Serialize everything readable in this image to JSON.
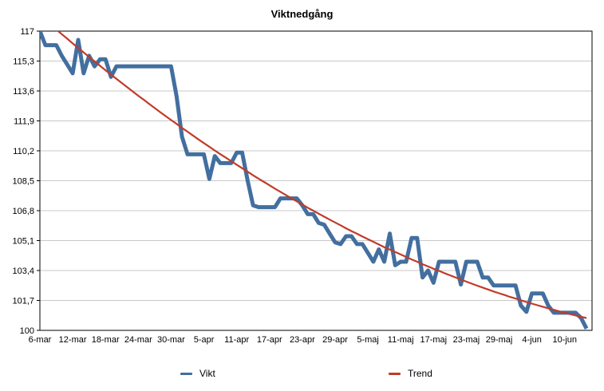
{
  "title": "Viktnedgång",
  "legend": {
    "items": [
      {
        "label": "Vikt",
        "color": "#426f9f"
      },
      {
        "label": "Trend",
        "color": "#c13b2a"
      }
    ]
  },
  "colors": {
    "vikt_line": "#426f9f",
    "trend_line": "#c13b2a",
    "gridline": "#c8c8c8",
    "axis": "#000000",
    "background": "#ffffff",
    "text": "#000000"
  },
  "chart_data": {
    "type": "line",
    "title": "Viktnedgång",
    "xlabel": "",
    "ylabel": "",
    "ylim": [
      100,
      117
    ],
    "grid": "horizontal",
    "legend_position": "bottom",
    "y_ticks": [
      100,
      101.7,
      103.4,
      105.1,
      106.8,
      108.5,
      110.2,
      111.9,
      113.6,
      115.3,
      117
    ],
    "y_tick_labels": [
      "100",
      "101,7",
      "103,4",
      "105,1",
      "106,8",
      "108,5",
      "110,2",
      "111,9",
      "113,6",
      "115,3",
      "117"
    ],
    "x_tick_labels": [
      "6-mar",
      "12-mar",
      "18-mar",
      "24-mar",
      "30-mar",
      "5-apr",
      "11-apr",
      "17-apr",
      "23-apr",
      "29-apr",
      "5-maj",
      "11-maj",
      "17-maj",
      "23-maj",
      "29-maj",
      "4-jun",
      "10-jun"
    ],
    "x_tick_days": [
      0,
      6,
      12,
      18,
      24,
      30,
      36,
      42,
      48,
      54,
      60,
      66,
      72,
      78,
      84,
      90,
      96
    ],
    "x_total_days": 101,
    "series": [
      {
        "name": "Vikt",
        "color": "#426f9f",
        "stroke_width": 5,
        "values": [
          117.0,
          116.2,
          116.2,
          116.2,
          115.6,
          115.1,
          114.6,
          116.5,
          114.6,
          115.6,
          115.0,
          115.4,
          115.4,
          114.4,
          115.0,
          115.0,
          115.0,
          115.0,
          115.0,
          115.0,
          115.0,
          115.0,
          115.0,
          115.0,
          115.0,
          113.3,
          111.0,
          110.0,
          110.0,
          110.0,
          110.0,
          108.6,
          109.9,
          109.5,
          109.5,
          109.5,
          110.1,
          110.1,
          108.5,
          107.1,
          107.0,
          107.0,
          107.0,
          107.0,
          107.5,
          107.5,
          107.5,
          107.5,
          107.1,
          106.6,
          106.6,
          106.1,
          106.0,
          105.5,
          105.0,
          104.9,
          105.35,
          105.35,
          104.9,
          104.9,
          104.4,
          103.9,
          104.6,
          103.9,
          105.5,
          103.7,
          103.9,
          103.9,
          105.25,
          105.25,
          103.0,
          103.4,
          102.7,
          103.9,
          103.9,
          103.9,
          103.9,
          102.6,
          103.9,
          103.9,
          103.9,
          103.0,
          103.0,
          102.55,
          102.55,
          102.55,
          102.55,
          102.55,
          101.4,
          101.05,
          102.1,
          102.1,
          102.1,
          101.4,
          101.0,
          101.0,
          101.0,
          101.0,
          101.0,
          100.7,
          100.1
        ]
      },
      {
        "name": "Trend",
        "color": "#c13b2a",
        "stroke_width": 2.2,
        "values": [
          117.9,
          117.63,
          117.36,
          117.09,
          116.83,
          116.57,
          116.3,
          116.05,
          115.79,
          115.53,
          115.28,
          115.03,
          114.78,
          114.53,
          114.29,
          114.05,
          113.81,
          113.57,
          113.33,
          113.1,
          112.86,
          112.63,
          112.4,
          112.17,
          111.95,
          111.73,
          111.5,
          111.29,
          111.07,
          110.85,
          110.64,
          110.43,
          110.22,
          110.01,
          109.81,
          109.61,
          109.41,
          109.21,
          109.01,
          108.81,
          108.62,
          108.43,
          108.24,
          108.05,
          107.87,
          107.69,
          107.5,
          107.33,
          107.15,
          106.97,
          106.8,
          106.63,
          106.46,
          106.29,
          106.13,
          105.97,
          105.8,
          105.64,
          105.49,
          105.33,
          105.18,
          105.03,
          104.88,
          104.73,
          104.59,
          104.45,
          104.31,
          104.17,
          104.03,
          103.9,
          103.76,
          103.63,
          103.5,
          103.38,
          103.25,
          103.13,
          103.01,
          102.89,
          102.77,
          102.65,
          102.54,
          102.43,
          102.32,
          102.21,
          102.11,
          102.01,
          101.9,
          101.81,
          101.71,
          101.61,
          101.52,
          101.43,
          101.34,
          101.25,
          101.17,
          101.08,
          101.0,
          100.92,
          100.85,
          100.77,
          100.7
        ]
      }
    ]
  }
}
